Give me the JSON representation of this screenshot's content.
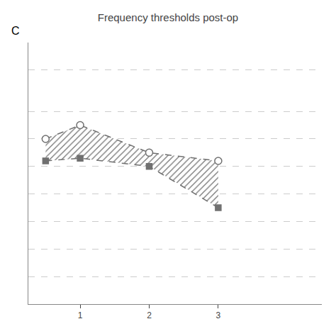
{
  "chart_data": {
    "type": "line",
    "title": "Frequency thresholds post-op",
    "annotations": [
      "C"
    ],
    "x": [
      0.5,
      1.0,
      2.0,
      3.0
    ],
    "series": [
      {
        "color": "#707070",
        "marker": "circle",
        "line_style": "dashed",
        "values": [
          20,
          15,
          25,
          28
        ]
      },
      {
        "color": "#707070",
        "marker": "square",
        "line_style": "dashed",
        "values": [
          28,
          27,
          30,
          45
        ]
      }
    ],
    "xlim": [
      0.25,
      4.5
    ],
    "xticks": [
      1,
      2,
      3
    ],
    "ylim": [
      80,
      -15
    ],
    "yticks": [
      -5,
      10,
      20,
      30,
      40,
      50,
      60,
      70
    ],
    "grid": true,
    "tick_labels": "x"
  }
}
